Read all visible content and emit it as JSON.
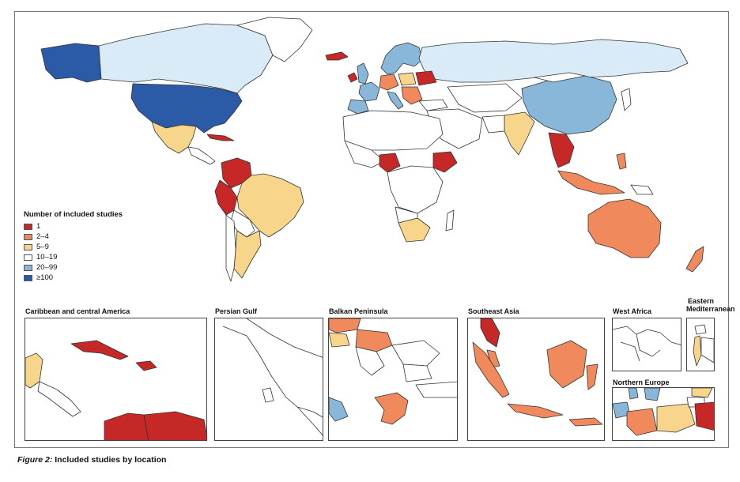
{
  "legend": {
    "title": "Number of included studies",
    "items": [
      {
        "label": "1",
        "color": "#c62828"
      },
      {
        "label": "2–4",
        "color": "#f08a5d"
      },
      {
        "label": "5–9",
        "color": "#f7d68c"
      },
      {
        "label": "10–19",
        "color": "#ffffff"
      },
      {
        "label": "20–99",
        "color": "#88b7da"
      },
      {
        "label": "≥100",
        "color": "#2b5aa6"
      }
    ]
  },
  "insets": [
    {
      "title": "Caribbean and central America"
    },
    {
      "title": "Persian Gulf"
    },
    {
      "title": "Balkan Peninsula"
    },
    {
      "title": "Southeast Asia"
    },
    {
      "title": "West Africa"
    },
    {
      "title_line1": "Eastern",
      "title_line2": "Mediterranean"
    },
    {
      "title": "Northern Europe"
    }
  ],
  "caption": {
    "label": "Figure 2:",
    "text": "Included studies by location"
  },
  "colors": {
    "c1": "#c62828",
    "c2": "#f08a5d",
    "c5": "#f7d68c",
    "c10": "#ffffff",
    "c20": "#88b7da",
    "c100": "#2b5aa6",
    "pale": "#d9ebf7",
    "stroke": "#333333"
  }
}
